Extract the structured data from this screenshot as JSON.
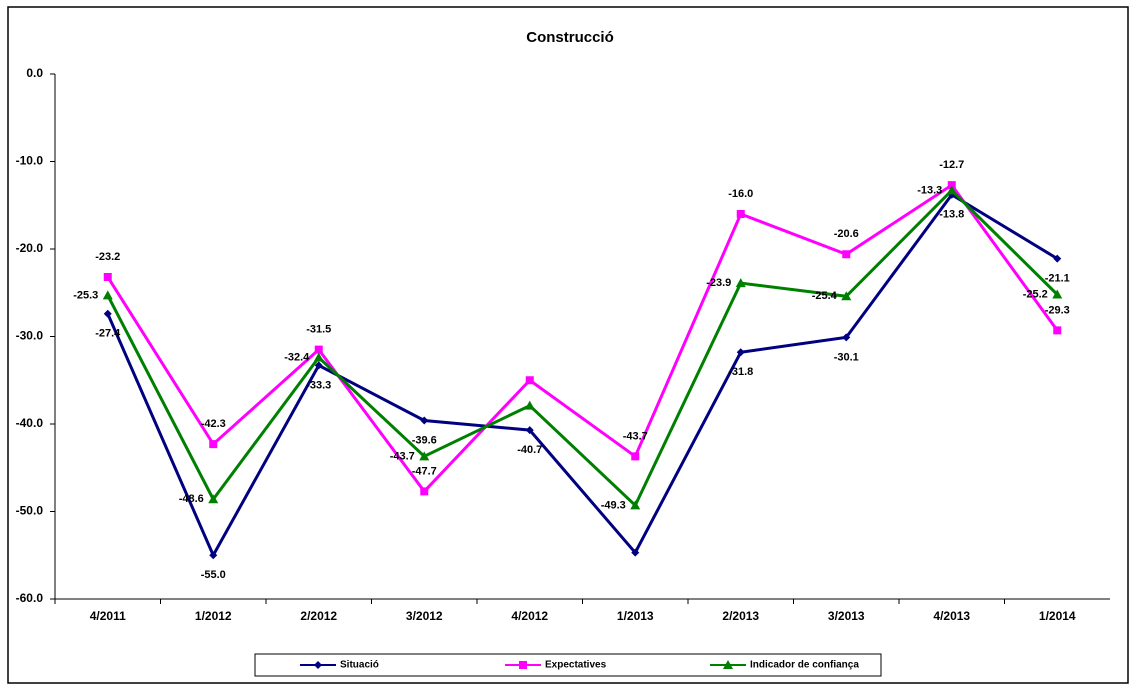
{
  "chart_data": {
    "type": "line",
    "title": "Construcció",
    "categories": [
      "4/2011",
      "1/2012",
      "2/2012",
      "3/2012",
      "4/2012",
      "1/2013",
      "2/2013",
      "3/2013",
      "4/2013",
      "1/2014"
    ],
    "ylim": [
      -60,
      0
    ],
    "yticks": [
      {
        "value": 0,
        "label": "0.0"
      },
      {
        "value": -10,
        "label": "-10.0"
      },
      {
        "value": -20,
        "label": "-20.0"
      },
      {
        "value": -30,
        "label": "-30.0"
      },
      {
        "value": -40,
        "label": "-40.0"
      },
      {
        "value": -50,
        "label": "-50.0"
      },
      {
        "value": -60,
        "label": "-60.0"
      }
    ],
    "series": [
      {
        "name": "Situació",
        "color": "#000080",
        "marker": "diamond",
        "values": [
          -27.4,
          -55.0,
          -33.3,
          -39.6,
          -40.7,
          -54.7,
          -31.8,
          -30.1,
          -13.8,
          -21.1
        ],
        "value_labels": [
          "-27.4",
          "-55.0",
          "-33.3",
          "-39.6",
          "-40.7",
          null,
          "-31.8",
          "-30.1",
          "-13.8",
          "-21.1"
        ]
      },
      {
        "name": "Expectatives",
        "color": "#ff00ff",
        "marker": "square",
        "values": [
          -23.2,
          -42.3,
          -31.5,
          -47.7,
          -35.0,
          -43.7,
          -16.0,
          -20.6,
          -12.7,
          -29.3
        ],
        "value_labels": [
          "-23.2",
          "-42.3",
          "-31.5",
          "-47.7",
          null,
          "-43.7",
          "-16.0",
          "-20.6",
          "-12.7",
          "-29.3"
        ]
      },
      {
        "name": "Indicador de confiança",
        "color": "#008000",
        "marker": "triangle",
        "values": [
          -25.3,
          -48.6,
          -32.4,
          -43.7,
          -37.9,
          -49.3,
          -23.9,
          -25.4,
          -13.3,
          -25.2
        ],
        "value_labels": [
          "-25.3",
          "-48.6",
          "-32.4",
          "-43.7",
          null,
          "-49.3",
          "-23.9",
          "-25.4",
          "-13.3",
          "-25.2"
        ]
      }
    ]
  }
}
